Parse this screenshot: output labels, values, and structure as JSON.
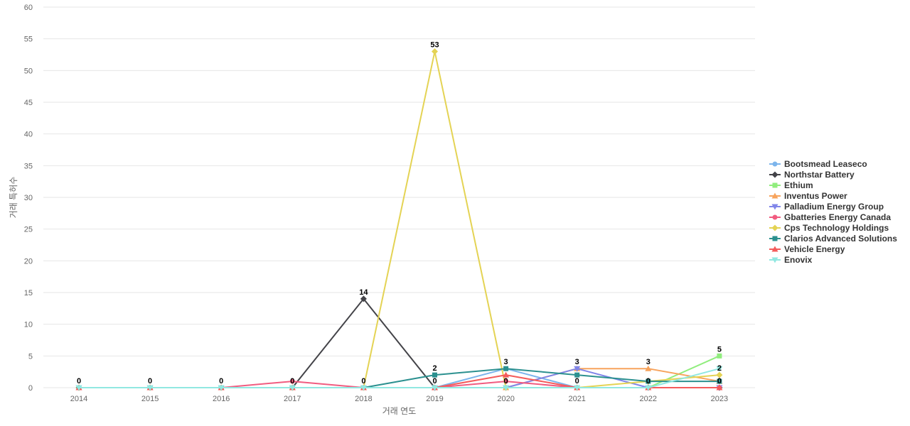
{
  "chart_data": {
    "type": "line",
    "title": "",
    "xlabel": "거래 연도",
    "ylabel": "거래 특허수",
    "x": [
      "2014",
      "2015",
      "2016",
      "2017",
      "2018",
      "2019",
      "2020",
      "2021",
      "2022",
      "2023"
    ],
    "ylim": [
      0,
      60
    ],
    "yticks": [
      0,
      5,
      10,
      15,
      20,
      25,
      30,
      35,
      40,
      45,
      50,
      55,
      60
    ],
    "grid": true,
    "legend_position": "right",
    "series": [
      {
        "name": "Bootsmead Leaseco",
        "color": "#7cb5ec",
        "marker": "circle",
        "values": [
          0,
          0,
          0,
          0,
          0,
          0,
          3,
          0,
          0,
          0
        ]
      },
      {
        "name": "Northstar Battery",
        "color": "#434348",
        "marker": "diamond",
        "values": [
          0,
          0,
          0,
          0,
          14,
          0,
          0,
          0,
          0,
          0
        ]
      },
      {
        "name": "Ethium",
        "color": "#90ed7d",
        "marker": "square",
        "values": [
          0,
          0,
          0,
          0,
          0,
          0,
          0,
          0,
          0,
          5
        ]
      },
      {
        "name": "Inventus Power",
        "color": "#f7a35c",
        "marker": "triangle",
        "values": [
          0,
          0,
          0,
          0,
          0,
          0,
          0,
          3,
          3,
          1
        ]
      },
      {
        "name": "Palladium Energy Group",
        "color": "#8085e9",
        "marker": "triangle-down",
        "values": [
          0,
          0,
          0,
          0,
          0,
          0,
          0,
          3,
          0,
          0
        ]
      },
      {
        "name": "Gbatteries Energy Canada",
        "color": "#f15c80",
        "marker": "circle",
        "values": [
          0,
          0,
          0,
          1,
          0,
          0,
          1,
          0,
          0,
          0
        ]
      },
      {
        "name": "Cps Technology Holdings",
        "color": "#e4d354",
        "marker": "diamond",
        "values": [
          0,
          0,
          0,
          0,
          0,
          53,
          0,
          0,
          1,
          2
        ]
      },
      {
        "name": "Clarios Advanced Solutions",
        "color": "#2b908f",
        "marker": "square",
        "values": [
          0,
          0,
          0,
          0,
          0,
          2,
          3,
          2,
          1,
          1
        ]
      },
      {
        "name": "Vehicle Energy",
        "color": "#f45b5b",
        "marker": "triangle",
        "values": [
          0,
          0,
          0,
          0,
          0,
          0,
          2,
          0,
          0,
          0
        ]
      },
      {
        "name": "Enovix",
        "color": "#91e8e1",
        "marker": "triangle-down",
        "values": [
          0,
          0,
          0,
          0,
          0,
          0,
          0,
          0,
          0,
          3
        ]
      }
    ],
    "data_labels": [
      {
        "x": "2014",
        "text": "0"
      },
      {
        "x": "2015",
        "text": "0"
      },
      {
        "x": "2016",
        "text": "0"
      },
      {
        "x": "2017",
        "text": "0"
      },
      {
        "x": "2018",
        "text": "14",
        "value": 14
      },
      {
        "x": "2018",
        "text": "0"
      },
      {
        "x": "2019",
        "text": "53",
        "value": 53
      },
      {
        "x": "2019",
        "text": "2",
        "value": 2
      },
      {
        "x": "2019",
        "text": "0"
      },
      {
        "x": "2020",
        "text": "3",
        "value": 3
      },
      {
        "x": "2020",
        "text": "0"
      },
      {
        "x": "2021",
        "text": "3",
        "value": 3
      },
      {
        "x": "2021",
        "text": "0"
      },
      {
        "x": "2022",
        "text": "3",
        "value": 3
      },
      {
        "x": "2022",
        "text": "0"
      },
      {
        "x": "2023",
        "text": "5",
        "value": 5
      },
      {
        "x": "2023",
        "text": "2",
        "value": 2
      },
      {
        "x": "2023",
        "text": "0"
      }
    ]
  }
}
